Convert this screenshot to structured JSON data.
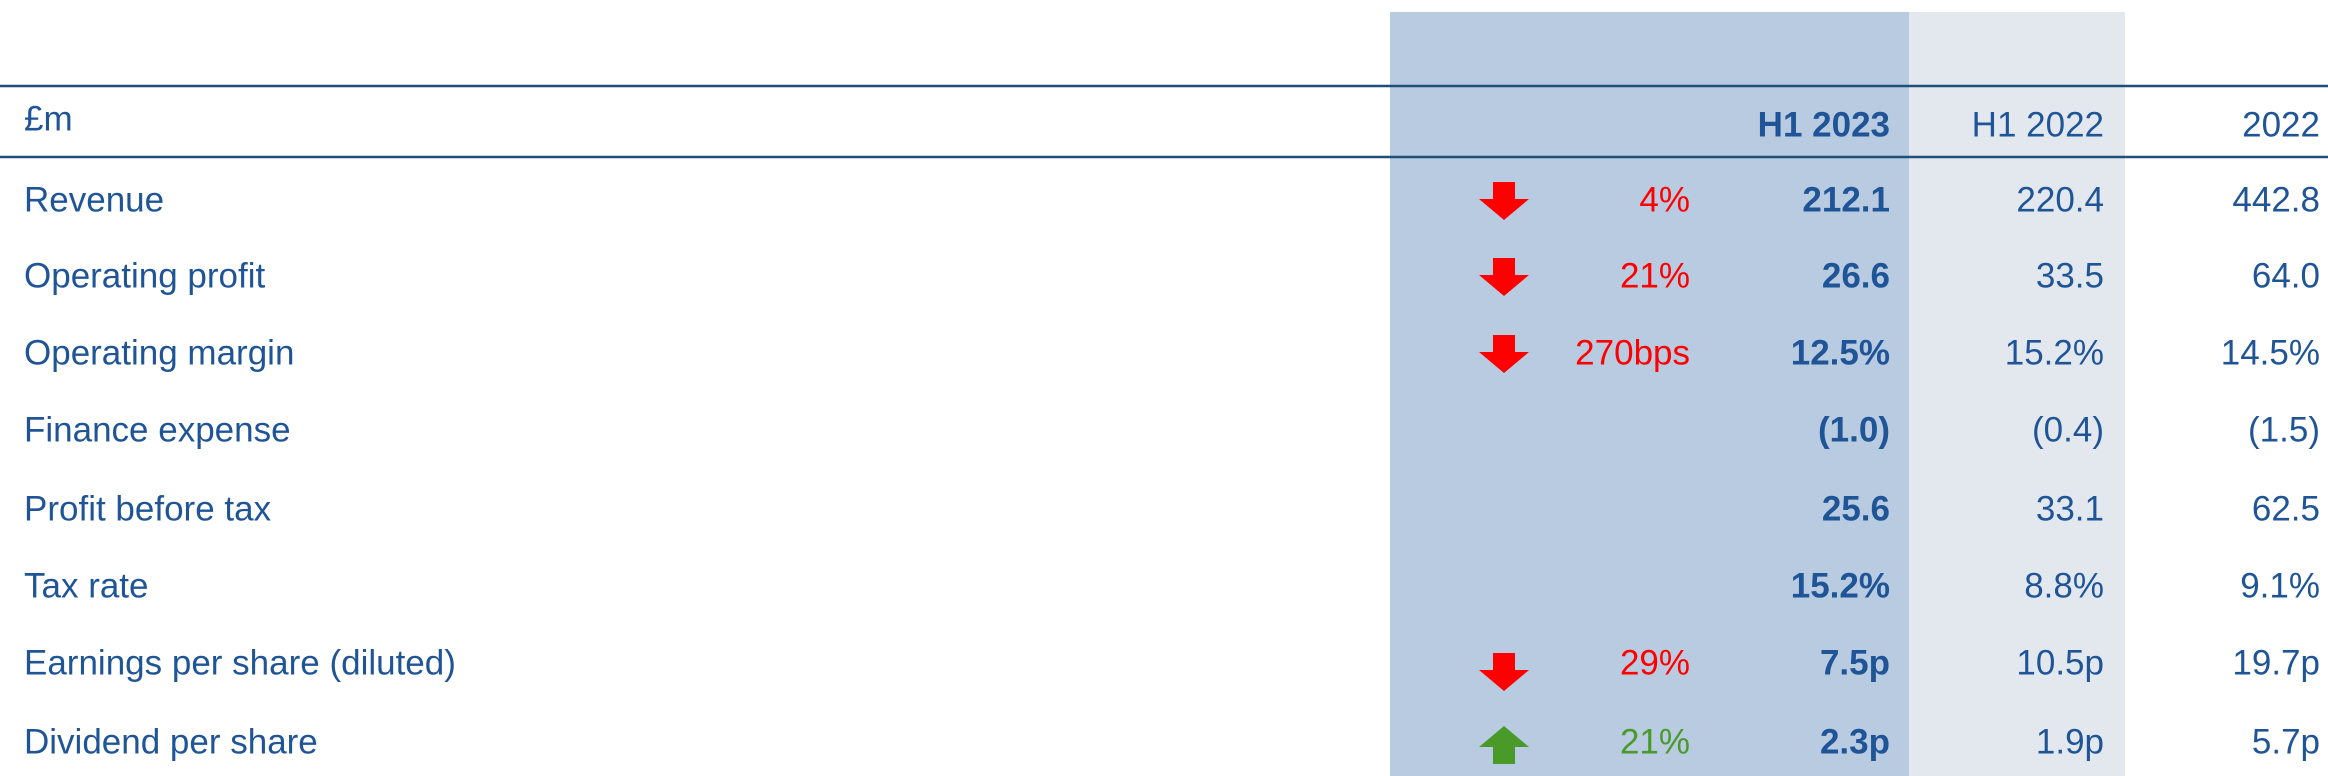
{
  "header": {
    "unit": "£m",
    "columns": [
      "H1 2023",
      "H1 2022",
      "2022"
    ]
  },
  "table": {
    "rows": [
      {
        "label": "Revenue",
        "change": "4%",
        "values": [
          "212.1",
          "220.4",
          "442.8"
        ]
      },
      {
        "label": "Operating profit",
        "change": "21%",
        "values": [
          "26.6",
          "33.5",
          "64.0"
        ]
      },
      {
        "label": "Operating margin",
        "change": "270bps",
        "values": [
          "12.5%",
          "15.2%",
          "14.5%"
        ]
      },
      {
        "label": "Finance expense",
        "values": [
          "(1.0)",
          "(0.4)",
          "(1.5)"
        ]
      },
      {
        "label": "Profit before tax",
        "values": [
          "25.6",
          "33.1",
          "62.5"
        ]
      },
      {
        "label": "Tax rate",
        "values": [
          "15.2%",
          "8.8%",
          "9.1%"
        ]
      },
      {
        "label": "Earnings per share (diluted)",
        "change": "29%",
        "values": [
          "7.5p",
          "10.5p",
          "19.7p"
        ]
      },
      {
        "label": "Dividend per share",
        "change": "21%",
        "values": [
          "2.3p",
          "1.9p",
          "5.7p"
        ]
      }
    ]
  }
}
